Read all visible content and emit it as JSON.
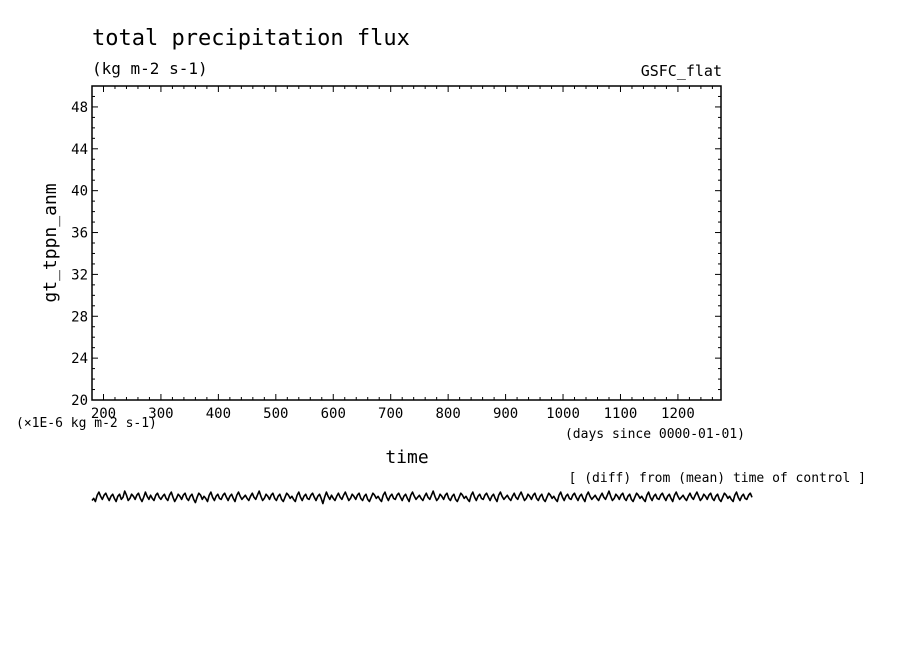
{
  "chart_data": {
    "type": "line",
    "title": "total precipitation flux",
    "units": "(kg m-2 s-1)",
    "experiment": "GSFC_flat",
    "ylabel": "gt_tppn_anm",
    "yscale_label": "(×1E-6 kg m-2 s-1)",
    "xlabel": "time",
    "xunits": "(days since 0000-01-01)",
    "note": "[ (diff) from (mean) time of control ]",
    "xlim": [
      180,
      1275
    ],
    "ylim": [
      20,
      50
    ],
    "x_ticks": [
      200,
      300,
      400,
      500,
      600,
      700,
      800,
      900,
      1000,
      1100,
      1200
    ],
    "y_ticks": [
      20,
      24,
      28,
      32,
      36,
      40,
      44,
      48
    ],
    "grid": false,
    "legend": "none",
    "series": [
      {
        "x_start": 180,
        "x_step": 3,
        "values": [
          10.4,
          10.6,
          10.3,
          10.9,
          11.2,
          10.8,
          10.5,
          10.9,
          11.1,
          10.7,
          10.4,
          10.8,
          11.0,
          10.6,
          10.3,
          10.8,
          11.0,
          10.5,
          10.7,
          11.3,
          10.9,
          10.4,
          10.6,
          11.0,
          10.8,
          10.5,
          10.9,
          11.1,
          10.6,
          10.3,
          10.7,
          11.2,
          10.8,
          10.5,
          10.9,
          10.6,
          10.4,
          10.9,
          11.1,
          10.7,
          10.5,
          10.8,
          11.0,
          10.6,
          10.4,
          10.9,
          11.2,
          10.7,
          10.3,
          10.6,
          11.0,
          10.8,
          10.5,
          10.9,
          11.1,
          10.6,
          10.4,
          10.8,
          11.0,
          10.5,
          10.2,
          10.7,
          11.1,
          10.9,
          10.5,
          10.8,
          10.6,
          10.3,
          10.9,
          11.2,
          10.7,
          10.4,
          10.8,
          11.0,
          10.6,
          10.5,
          10.9,
          11.1,
          10.7,
          10.4,
          10.8,
          11.0,
          10.6,
          10.3,
          10.9,
          11.2,
          10.8,
          10.5,
          10.7,
          10.9,
          10.6,
          10.4,
          10.8,
          11.1,
          10.7,
          10.5,
          10.9,
          11.3,
          10.8,
          10.4,
          10.6,
          11.0,
          10.8,
          10.5,
          10.9,
          11.1,
          10.6,
          10.4,
          10.8,
          11.0,
          10.5,
          10.3,
          10.7,
          11.1,
          10.9,
          10.6,
          10.8,
          10.5,
          10.3,
          10.9,
          11.2,
          10.7,
          10.4,
          10.8,
          11.0,
          10.6,
          10.5,
          10.9,
          11.1,
          10.7,
          10.4,
          10.8,
          11.0,
          10.6,
          10.1,
          10.7,
          11.2,
          10.8,
          10.5,
          10.9,
          10.6,
          10.4,
          10.8,
          11.1,
          10.7,
          10.5,
          10.9,
          11.2,
          10.8,
          10.4,
          10.6,
          11.0,
          10.8,
          10.5,
          10.9,
          11.1,
          10.6,
          10.4,
          10.8,
          11.0,
          10.5,
          10.3,
          10.7,
          11.1,
          10.9,
          10.6,
          10.8,
          10.5,
          10.3,
          10.9,
          11.2,
          10.7,
          10.4,
          10.8,
          11.0,
          10.6,
          10.5,
          10.9,
          11.1,
          10.7,
          10.4,
          10.8,
          11.0,
          10.6,
          10.3,
          10.9,
          11.2,
          10.8,
          10.5,
          10.7,
          10.9,
          10.6,
          10.4,
          10.8,
          11.1,
          10.7,
          10.5,
          10.9,
          11.3,
          10.8,
          10.4,
          10.6,
          11.0,
          10.8,
          10.5,
          10.9,
          11.1,
          10.6,
          10.4,
          10.8,
          11.0,
          10.5,
          10.3,
          10.7,
          11.1,
          10.9,
          10.6,
          10.8,
          10.5,
          10.3,
          10.9,
          11.2,
          10.7,
          10.4,
          10.8,
          11.0,
          10.6,
          10.5,
          10.9,
          11.1,
          10.7,
          10.4,
          10.8,
          11.0,
          10.6,
          10.3,
          10.9,
          11.2,
          10.8,
          10.5,
          10.7,
          10.9,
          10.6,
          10.4,
          10.8,
          11.1,
          10.7,
          10.5,
          10.9,
          11.2,
          10.8,
          10.4,
          10.6,
          11.0,
          10.8,
          10.5,
          10.9,
          11.1,
          10.6,
          10.4,
          10.8,
          11.0,
          10.5,
          10.3,
          10.7,
          11.1,
          10.9,
          10.6,
          10.8,
          10.5,
          10.3,
          10.9,
          11.2,
          10.7,
          10.4,
          10.8,
          11.0,
          10.6,
          10.5,
          10.9,
          11.1,
          10.7,
          10.4,
          10.8,
          11.0,
          10.6,
          10.3,
          10.9,
          11.2,
          10.8,
          10.5,
          10.7,
          10.9,
          10.6,
          10.4,
          10.8,
          11.1,
          10.7,
          10.5,
          10.9,
          11.3,
          10.8,
          10.4,
          10.6,
          11.0,
          10.8,
          10.5,
          10.9,
          11.1,
          10.6,
          10.4,
          10.8,
          11.0,
          10.5,
          10.3,
          10.7,
          11.1,
          10.9,
          10.6,
          10.8,
          10.5,
          10.3,
          10.9,
          11.2,
          10.7,
          10.4,
          10.8,
          11.0,
          10.6,
          10.5,
          10.9,
          11.1,
          10.7,
          10.4,
          10.8,
          11.0,
          10.6,
          10.3,
          10.9,
          11.2,
          10.8,
          10.5,
          10.7,
          10.9,
          10.6,
          10.4,
          10.8,
          11.1,
          10.7,
          10.5,
          10.9,
          11.2,
          10.8,
          10.4,
          10.6,
          11.0,
          10.8,
          10.5,
          10.9,
          11.1,
          10.6,
          10.4,
          10.8,
          11.0,
          10.5,
          10.3,
          10.7,
          11.1,
          10.9,
          10.6,
          10.8,
          10.5,
          10.3,
          10.9,
          11.2,
          10.7,
          10.4,
          10.8,
          11.0,
          10.6,
          10.5,
          10.9,
          11.1,
          10.7
        ]
      }
    ]
  }
}
